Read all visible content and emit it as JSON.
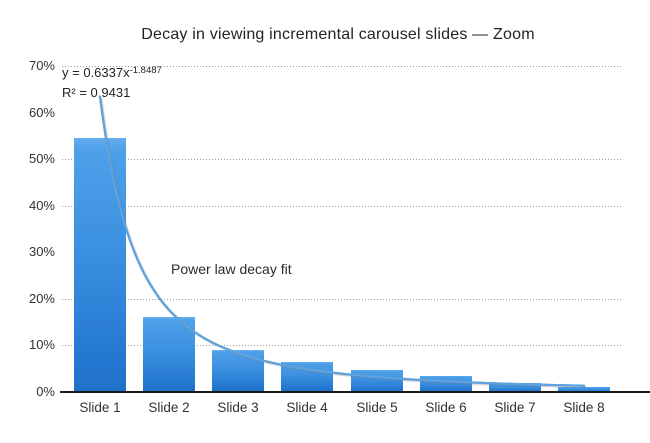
{
  "title": "Decay in viewing incremental carousel slides — Zoom",
  "annotation": "Power law decay fit",
  "equation": {
    "base": "y = 0.6337x",
    "exponent": "-1.8487",
    "r2": "R² = 0.9431"
  },
  "chart_data": {
    "type": "bar",
    "title": "Decay in viewing incremental carousel slides — Zoom",
    "categories": [
      "Slide 1",
      "Slide 2",
      "Slide 3",
      "Slide 4",
      "Slide 5",
      "Slide 6",
      "Slide 7",
      "Slide 8"
    ],
    "values": [
      54.5,
      16,
      9,
      6.5,
      4.8,
      3.5,
      2,
      1
    ],
    "unit": "%",
    "xlabel": "",
    "ylabel": "",
    "ylim": [
      0,
      70
    ],
    "y_ticks": [
      "70%",
      "60%",
      "50%",
      "40%",
      "30%",
      "20%",
      "10%",
      "0%"
    ],
    "y_tick_values": [
      70,
      60,
      50,
      40,
      30,
      20,
      10,
      0
    ],
    "gridline_values": [
      70,
      50,
      40,
      20,
      10
    ],
    "grid": "dotted-horizontal",
    "legend": "none",
    "trendline": {
      "type": "power",
      "a": 0.6337,
      "b": -1.8487,
      "r2": 0.9431,
      "label": "Power law decay fit",
      "x_range": [
        1,
        8
      ]
    },
    "colors": {
      "bar_top": "#4da0e9",
      "bar_bottom": "#1f71c9",
      "trendline": "#5fa2de",
      "gridline": "#9d9d9d",
      "axis_line": "#191919",
      "text": "#2b2b2b"
    }
  }
}
